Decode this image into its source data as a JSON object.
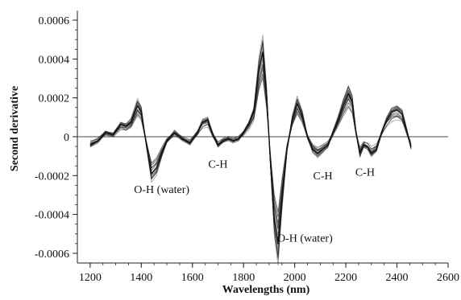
{
  "chart_data": {
    "type": "line",
    "title": "",
    "xlabel": "Wavelengths (nm)",
    "ylabel": "Second derivative",
    "xlim": [
      1150,
      2600
    ],
    "ylim": [
      -0.00065,
      0.00065
    ],
    "x_ticks": [
      1200,
      1400,
      1600,
      1800,
      2000,
      2200,
      2400,
      2600
    ],
    "y_ticks": [
      {
        "value": 0.0006,
        "label": "0.0006"
      },
      {
        "value": 0.0004,
        "label": "0.0004"
      },
      {
        "value": 0.0002,
        "label": "0.0002"
      },
      {
        "value": 0,
        "label": "0"
      },
      {
        "value": -0.0002,
        "label": "-0.0002"
      },
      {
        "value": -0.0004,
        "label": "-0.0004"
      },
      {
        "value": -0.0006,
        "label": "-0.0006"
      }
    ],
    "grid": false,
    "zero_line": true,
    "line_color": "#333333",
    "series_count_shown": 24,
    "series": [
      {
        "x": [
          1200,
          1230,
          1260,
          1290,
          1320,
          1340,
          1360,
          1385,
          1400,
          1420,
          1440,
          1460,
          1480,
          1500,
          1530,
          1560,
          1590,
          1620,
          1640,
          1660,
          1680,
          1700,
          1720,
          1740,
          1760,
          1780,
          1800,
          1820,
          1840,
          1860,
          1875,
          1890,
          1905,
          1920,
          1935,
          1950,
          1970,
          1990,
          2010,
          2030,
          2050,
          2070,
          2090,
          2110,
          2130,
          2150,
          2170,
          2190,
          2210,
          2225,
          2240,
          2255,
          2270,
          2285,
          2300,
          2320,
          2340,
          2360,
          2380,
          2400,
          2420,
          2440,
          2455
        ],
        "values": [
          -4e-05,
          -2e-05,
          2e-05,
          1e-05,
          6e-05,
          5e-05,
          7e-05,
          0.00015,
          0.00012,
          -4e-05,
          -0.00018,
          -0.00015,
          -8e-05,
          -2e-05,
          2e-05,
          -1e-05,
          -3e-05,
          2e-05,
          7e-05,
          8e-05,
          1e-05,
          -4e-05,
          -2e-05,
          -1e-05,
          -2e-05,
          -1e-05,
          2e-05,
          6e-05,
          0.00012,
          0.00032,
          0.00041,
          0.0002,
          -0.00012,
          -0.0004,
          -0.00052,
          -0.0003,
          -6e-05,
          8e-05,
          0.00016,
          0.0001,
          0.0,
          -6e-05,
          -8e-05,
          -6e-05,
          -4e-05,
          2e-05,
          8e-05,
          0.00015,
          0.00021,
          0.00017,
          2e-05,
          -8e-05,
          -4e-05,
          -5e-05,
          -8e-05,
          -6e-05,
          2e-05,
          8e-05,
          0.00012,
          0.00013,
          0.00011,
          2e-05,
          -5e-05
        ]
      }
    ],
    "annotations": [
      {
        "text": "O-H (water)",
        "x": 1480,
        "y": -0.00029
      },
      {
        "text": "C-H",
        "x": 1700,
        "y": -0.00016
      },
      {
        "text": "O-H (water)",
        "x": 2040,
        "y": -0.00054
      },
      {
        "text": "C-H",
        "x": 2110,
        "y": -0.00022
      },
      {
        "text": "C-H",
        "x": 2275,
        "y": -0.0002
      }
    ]
  }
}
